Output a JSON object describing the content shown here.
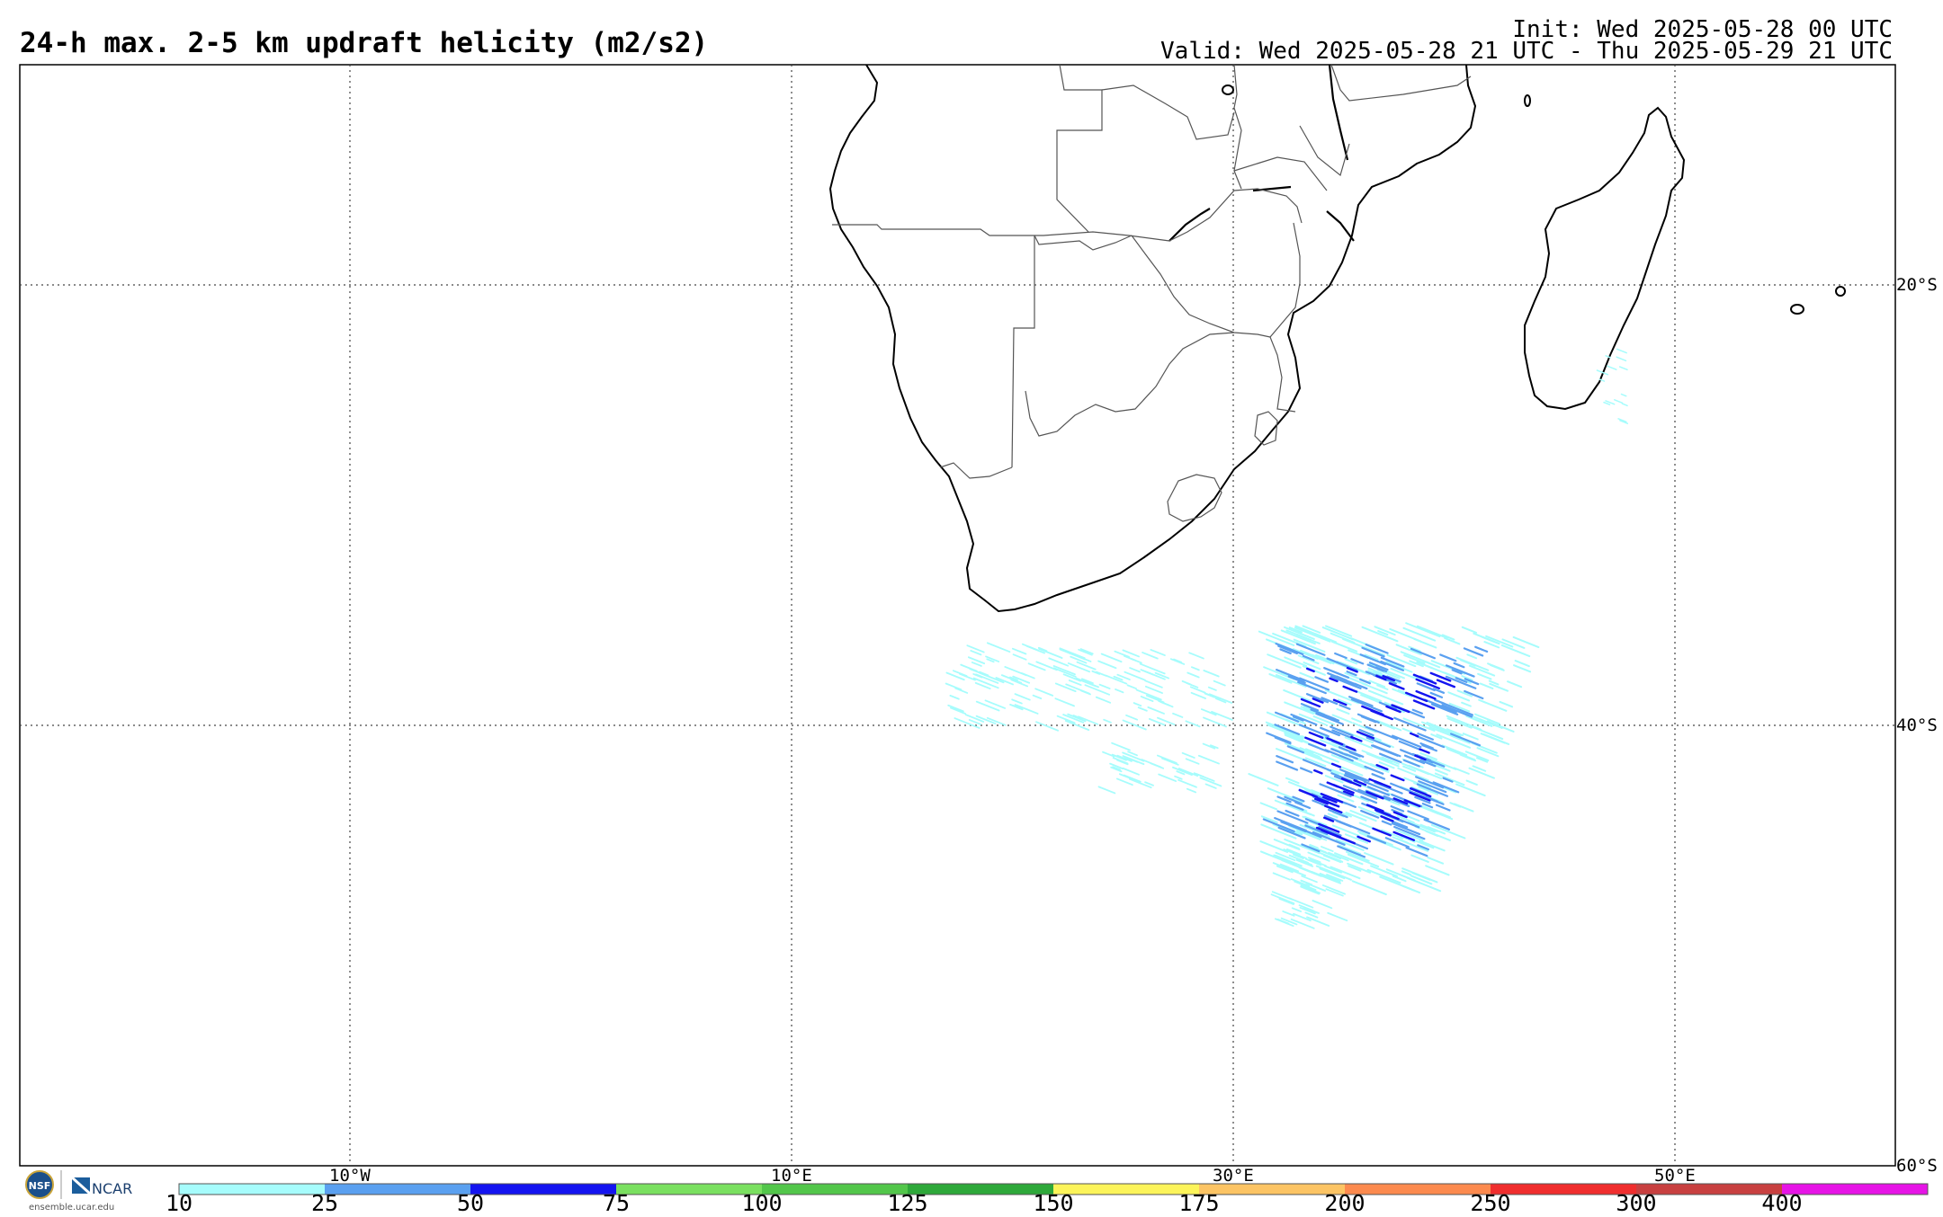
{
  "header": {
    "title": "24-h max. 2-5 km updraft helicity (m2/s2)",
    "init": "Init: Wed 2025-05-28 00 UTC",
    "valid": "Valid: Wed 2025-05-28 21 UTC - Thu 2025-05-29 21 UTC"
  },
  "map": {
    "lon_labels": [
      "10°W",
      "10°E",
      "30°E",
      "50°E"
    ],
    "lat_labels": [
      "20°S",
      "40°S",
      "60°S"
    ],
    "grid": "dotted"
  },
  "colorbar": {
    "ticks": [
      "10",
      "25",
      "50",
      "75",
      "100",
      "125",
      "150",
      "175",
      "200",
      "250",
      "300",
      "400"
    ],
    "colors": [
      "#a6fcfc",
      "#5aa0f0",
      "#1414f0",
      "#7ae060",
      "#52c64a",
      "#2ea83a",
      "#fcf45a",
      "#fcc464",
      "#fc8a4e",
      "#f02e2e",
      "#c84040",
      "#e614e6"
    ]
  },
  "footer": {
    "logo_nsf": "NSF",
    "logo_ncar": "NCAR",
    "url": "ensemble.ucar.edu"
  }
}
